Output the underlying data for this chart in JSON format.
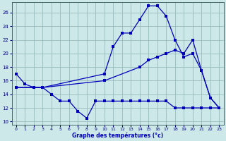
{
  "title": "Graphe des températures (°c)",
  "bg_color": "#cce8e8",
  "line_color": "#0000bb",
  "grid_color": "#99bbbb",
  "xlim": [
    -0.5,
    23.5
  ],
  "ylim": [
    9.5,
    27.5
  ],
  "yticks": [
    10,
    12,
    14,
    16,
    18,
    20,
    22,
    24,
    26
  ],
  "xticks": [
    0,
    1,
    2,
    3,
    4,
    5,
    6,
    7,
    8,
    9,
    10,
    11,
    12,
    13,
    14,
    15,
    16,
    17,
    18,
    19,
    20,
    21,
    22,
    23
  ],
  "line1_x": [
    0,
    1,
    2,
    3,
    4,
    5,
    6,
    7,
    8,
    9,
    10,
    11,
    12,
    13,
    14,
    15,
    16,
    17,
    18,
    19,
    20,
    21,
    22,
    23
  ],
  "line1_y": [
    17,
    15.5,
    15,
    15,
    14,
    13,
    13,
    11.5,
    10.5,
    13,
    13,
    13,
    13,
    13,
    13,
    13,
    13,
    13,
    12,
    12,
    12,
    12,
    12,
    12
  ],
  "line2_x": [
    0,
    2,
    3,
    10,
    14,
    15,
    16,
    17,
    18,
    19,
    20,
    21,
    22,
    23
  ],
  "line2_y": [
    15,
    15,
    15,
    16,
    18,
    19,
    19.5,
    20,
    20.5,
    20,
    22,
    17.5,
    13.5,
    12
  ],
  "line3_x": [
    0,
    2,
    3,
    10,
    11,
    12,
    13,
    14,
    15,
    16,
    17,
    18,
    19,
    20,
    21,
    22,
    23
  ],
  "line3_y": [
    15,
    15,
    15,
    17,
    21,
    23,
    23,
    25,
    27,
    27,
    25.5,
    22,
    19.5,
    20,
    17.5,
    13.5,
    12
  ]
}
